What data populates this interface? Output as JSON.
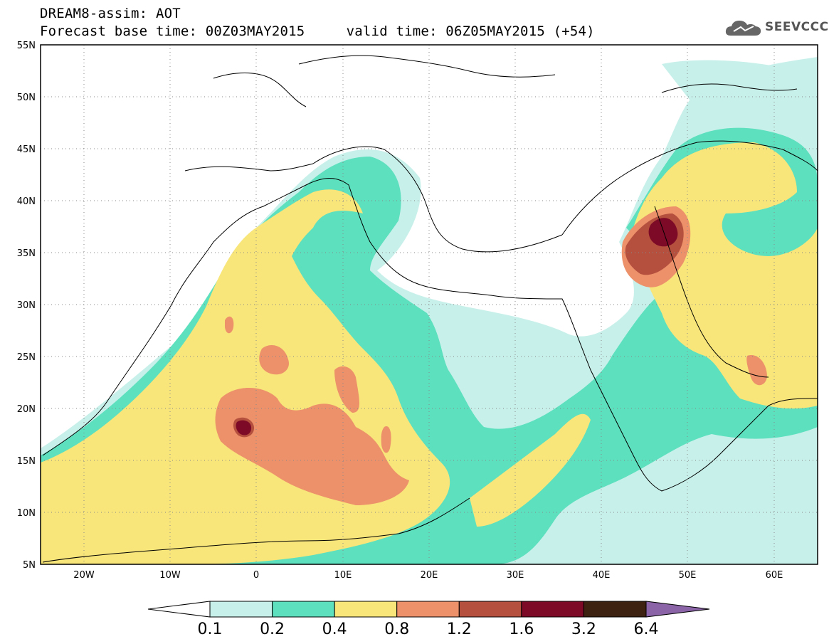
{
  "title": {
    "line1": "DREAM8-assim: AOT",
    "line2": "Forecast base time: 00Z03MAY2015     valid time: 06Z05MAY2015 (+54)"
  },
  "logo": {
    "text": "SEEVCCC",
    "icon": "cloud-icon"
  },
  "map": {
    "lat_range": [
      5,
      55
    ],
    "lon_range": [
      -25,
      65
    ],
    "lat_ticks": [
      "5N",
      "10N",
      "15N",
      "20N",
      "25N",
      "30N",
      "35N",
      "40N",
      "45N",
      "50N",
      "55N"
    ],
    "lon_ticks": [
      "20W",
      "10W",
      "0",
      "10E",
      "20E",
      "30E",
      "40E",
      "50E",
      "60E"
    ],
    "gridlines": true,
    "gridline_style": "dotted"
  },
  "colorbar": {
    "labels": [
      "0.1",
      "0.2",
      "0.4",
      "0.8",
      "1.2",
      "1.6",
      "3.2",
      "6.4"
    ],
    "colors": [
      "#c8f0ea",
      "#5ce0be",
      "#f8e67a",
      "#ec916a",
      "#b5503e",
      "#7d0a26",
      "#3d2212",
      "#8a64a6"
    ],
    "under_color": "#ffffff",
    "over_color": "#8a64a6"
  }
}
